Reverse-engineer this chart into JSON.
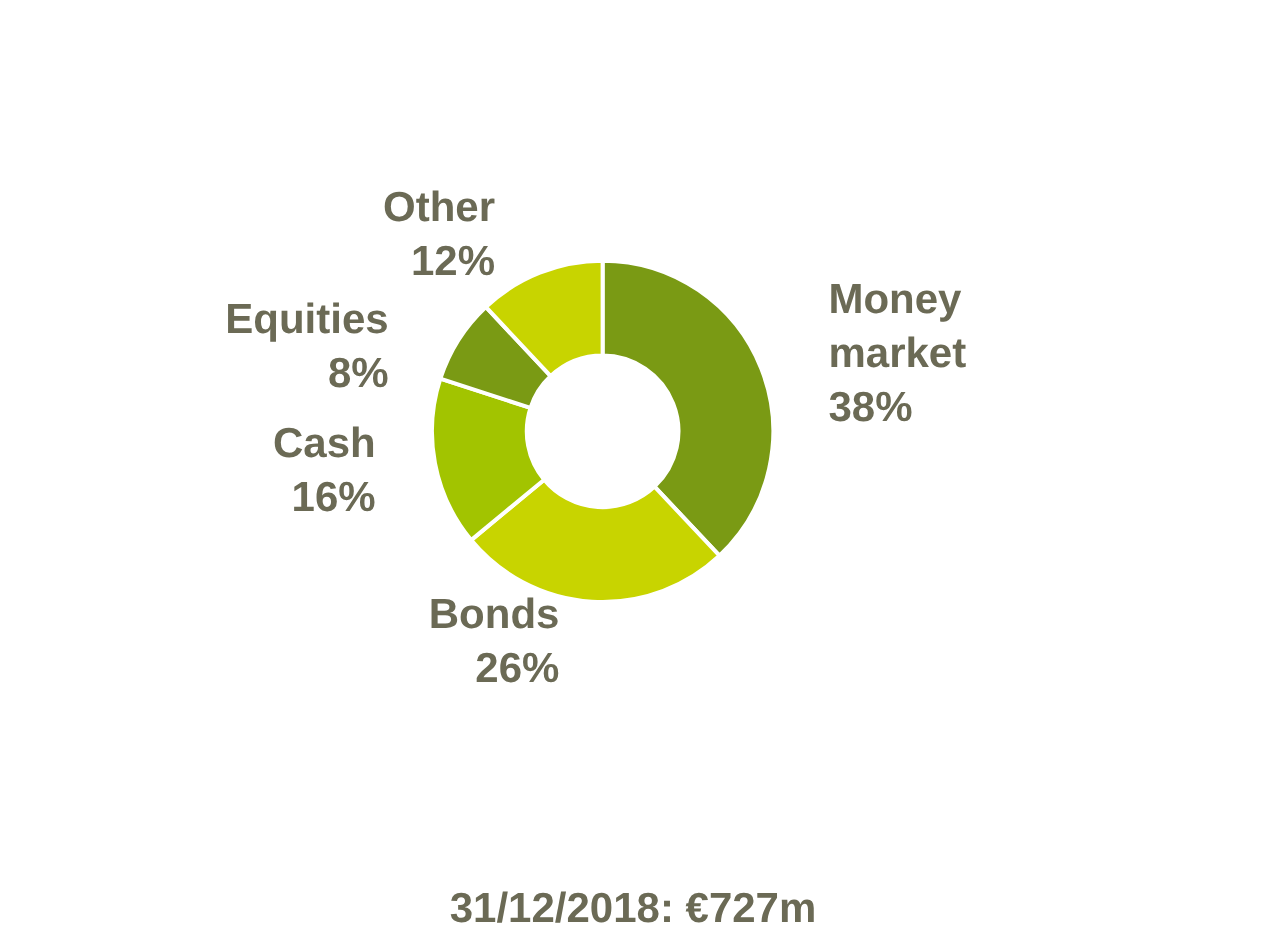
{
  "chart_data": {
    "type": "donut",
    "title": "31/12/2018: €727m",
    "categories": [
      "Money market",
      "Bonds",
      "Cash",
      "Equities",
      "Other"
    ],
    "values": [
      38,
      26,
      16,
      8,
      12
    ],
    "value_labels": [
      "38%",
      "26%",
      "16%",
      "8%",
      "12%"
    ],
    "colors": [
      "#7a9a14",
      "#c8d400",
      "#a2c400",
      "#7a9a14",
      "#c8d400"
    ],
    "legend": false
  }
}
